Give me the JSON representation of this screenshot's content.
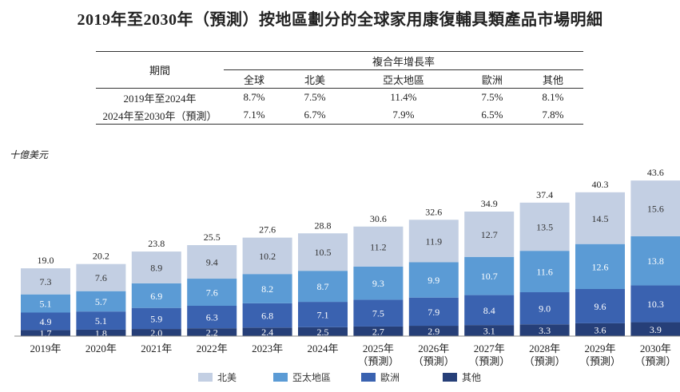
{
  "title": "2019年至2030年（預測）按地區劃分的全球家用康復輔具類產品市場明細",
  "table": {
    "period_header": "期間",
    "cagr_header": "複合年增長率",
    "columns": [
      "全球",
      "北美",
      "亞太地區",
      "歐洲",
      "其他"
    ],
    "rows": [
      {
        "period": "2019年至2024年",
        "values": [
          "8.7%",
          "7.5%",
          "11.4%",
          "7.5%",
          "8.1%"
        ]
      },
      {
        "period": "2024年至2030年（預測）",
        "values": [
          "7.1%",
          "6.7%",
          "7.9%",
          "6.5%",
          "7.8%"
        ]
      }
    ]
  },
  "chart_data": {
    "type": "bar",
    "stacked": true,
    "unit_label": "十億美元",
    "categories": [
      "2019年",
      "2020年",
      "2021年",
      "2022年",
      "2023年",
      "2024年",
      "2025年\n（預測）",
      "2026年\n（預測）",
      "2027年\n（預測）",
      "2028年\n（預測）",
      "2029年\n（預測）",
      "2030年\n（預測）"
    ],
    "series": [
      {
        "name": "其他",
        "color": "#263f78",
        "values": [
          1.7,
          1.8,
          2.0,
          2.2,
          2.4,
          2.5,
          2.7,
          2.9,
          3.1,
          3.3,
          3.6,
          3.9
        ]
      },
      {
        "name": "歐洲",
        "color": "#3a62b0",
        "values": [
          4.9,
          5.1,
          5.9,
          6.3,
          6.8,
          7.1,
          7.5,
          7.9,
          8.4,
          9.0,
          9.6,
          10.3
        ]
      },
      {
        "name": "亞太地區",
        "color": "#5b9bd5",
        "values": [
          5.1,
          5.7,
          6.9,
          7.6,
          8.2,
          8.7,
          9.3,
          9.9,
          10.7,
          11.6,
          12.6,
          13.8
        ]
      },
      {
        "name": "北美",
        "color": "#c3cfe3",
        "values": [
          7.3,
          7.6,
          8.9,
          9.4,
          10.2,
          10.5,
          11.2,
          11.9,
          12.7,
          13.5,
          14.5,
          15.6
        ]
      }
    ],
    "totals": [
      "19.0",
      "20.2",
      "23.8",
      "25.5",
      "27.6",
      "28.8",
      "30.6",
      "32.6",
      "34.9",
      "37.4",
      "40.3",
      "43.6"
    ],
    "legend_order": [
      "北美",
      "亞太地區",
      "歐洲",
      "其他"
    ],
    "legend_position": "bottom",
    "grid": false
  }
}
